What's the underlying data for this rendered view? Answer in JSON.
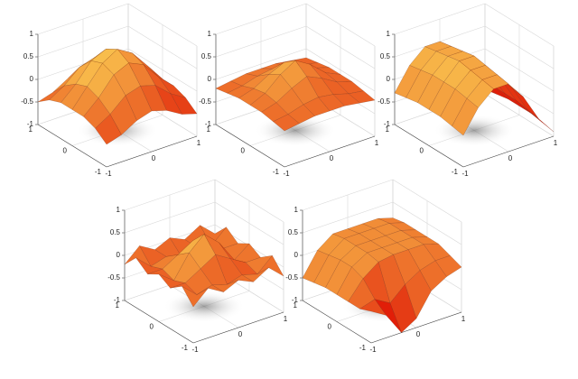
{
  "chart_data": [
    {
      "type": "surface",
      "xlim": [
        -1,
        1
      ],
      "ylim": [
        -1,
        1
      ],
      "zlim": [
        -1,
        1
      ],
      "xticks": [
        -1,
        0,
        1
      ],
      "yticks": [
        -1,
        0,
        1
      ],
      "zticks": [
        -1,
        -0.5,
        0,
        0.5,
        1
      ],
      "x": [
        -1,
        -0.67,
        -0.33,
        0,
        0.33,
        0.67,
        1
      ],
      "y": [
        -1,
        -0.67,
        -0.33,
        0,
        0.33,
        0.67,
        1
      ],
      "z": [
        [
          -0.5,
          -0.4,
          -0.2,
          -0.1,
          -0.2,
          -0.4,
          -0.5
        ],
        [
          -0.3,
          -0.1,
          0.2,
          0.3,
          0.2,
          -0.1,
          -0.3
        ],
        [
          -0.2,
          0.1,
          0.5,
          0.65,
          0.5,
          0.1,
          -0.2
        ],
        [
          -0.2,
          0.2,
          0.6,
          0.8,
          0.6,
          0.2,
          -0.2
        ],
        [
          -0.2,
          0.1,
          0.5,
          0.65,
          0.5,
          0.1,
          -0.2
        ],
        [
          -0.3,
          -0.1,
          0.2,
          0.3,
          0.2,
          -0.1,
          -0.3
        ],
        [
          -0.5,
          -0.4,
          -0.2,
          -0.1,
          -0.2,
          -0.4,
          -0.5
        ]
      ]
    },
    {
      "type": "surface",
      "xlim": [
        -1,
        1
      ],
      "ylim": [
        -1,
        1
      ],
      "zlim": [
        -1,
        1
      ],
      "xticks": [
        -1,
        0,
        1
      ],
      "yticks": [
        -1,
        0,
        1
      ],
      "zticks": [
        -1,
        -0.5,
        0,
        0.5,
        1
      ],
      "x": [
        -1,
        -0.67,
        -0.33,
        0,
        0.33,
        0.67,
        1
      ],
      "y": [
        -1,
        -0.67,
        -0.33,
        0,
        0.33,
        0.67,
        1
      ],
      "z": [
        [
          -0.2,
          -0.15,
          -0.1,
          -0.1,
          -0.1,
          -0.15,
          -0.2
        ],
        [
          -0.15,
          -0.1,
          0,
          0.05,
          0,
          -0.1,
          -0.15
        ],
        [
          -0.1,
          0,
          0.2,
          0.35,
          0.2,
          0,
          -0.1
        ],
        [
          -0.1,
          0.05,
          0.35,
          0.55,
          0.35,
          0.05,
          -0.1
        ],
        [
          -0.1,
          0,
          0.2,
          0.35,
          0.2,
          0,
          -0.1
        ],
        [
          -0.15,
          -0.1,
          0,
          0.05,
          0,
          -0.1,
          -0.15
        ],
        [
          -0.2,
          -0.15,
          -0.1,
          -0.1,
          -0.1,
          -0.15,
          -0.2
        ]
      ]
    },
    {
      "type": "surface",
      "xlim": [
        -1,
        1
      ],
      "ylim": [
        -1,
        1
      ],
      "zlim": [
        -1,
        1
      ],
      "xticks": [
        -1,
        0,
        1
      ],
      "yticks": [
        -1,
        0,
        1
      ],
      "zticks": [
        -1,
        -0.5,
        0,
        0.5,
        1
      ],
      "x": [
        -1,
        -0.67,
        -0.33,
        0,
        0.33,
        0.67,
        1
      ],
      "y": [
        -1,
        -0.67,
        -0.33,
        0,
        0.33,
        0.67,
        1
      ],
      "z": [
        [
          -0.3,
          0.2,
          0.5,
          0.5,
          0.1,
          -0.5,
          -0.9
        ],
        [
          -0.25,
          0.25,
          0.55,
          0.55,
          0.15,
          -0.45,
          -0.85
        ],
        [
          -0.2,
          0.3,
          0.6,
          0.6,
          0.2,
          -0.4,
          -0.8
        ],
        [
          -0.2,
          0.3,
          0.65,
          0.65,
          0.2,
          -0.4,
          -0.8
        ],
        [
          -0.2,
          0.3,
          0.6,
          0.6,
          0.2,
          -0.4,
          -0.8
        ],
        [
          -0.25,
          0.25,
          0.55,
          0.55,
          0.15,
          -0.45,
          -0.85
        ],
        [
          -0.3,
          0.2,
          0.5,
          0.5,
          0.1,
          -0.5,
          -0.9
        ]
      ]
    },
    {
      "type": "surface",
      "xlim": [
        -1,
        1
      ],
      "ylim": [
        -1,
        1
      ],
      "zlim": [
        -1,
        1
      ],
      "xticks": [
        -1,
        0,
        1
      ],
      "yticks": [
        -1,
        0,
        1
      ],
      "zticks": [
        -1,
        -0.5,
        0,
        0.5,
        1
      ],
      "x": [
        -1,
        -0.67,
        -0.33,
        0,
        0.33,
        0.67,
        1
      ],
      "y": [
        -1,
        -0.67,
        -0.33,
        0,
        0.33,
        0.67,
        1
      ],
      "z": [
        [
          -0.2,
          0.1,
          -0.1,
          0.05,
          -0.1,
          0.1,
          -0.2
        ],
        [
          0.1,
          -0.2,
          -0.1,
          -0.2,
          -0.1,
          -0.2,
          0.1
        ],
        [
          -0.1,
          -0.1,
          0.1,
          0.3,
          0.1,
          -0.1,
          -0.1
        ],
        [
          0.05,
          -0.2,
          0.3,
          0.6,
          0.3,
          -0.2,
          0.05
        ],
        [
          -0.1,
          -0.1,
          0.1,
          0.3,
          0.1,
          -0.1,
          -0.1
        ],
        [
          0.1,
          -0.2,
          -0.1,
          -0.2,
          -0.1,
          -0.2,
          0.1
        ],
        [
          -0.2,
          0.1,
          -0.1,
          0.05,
          -0.1,
          0.1,
          -0.2
        ]
      ]
    },
    {
      "type": "surface",
      "xlim": [
        -1,
        1
      ],
      "ylim": [
        -1,
        1
      ],
      "zlim": [
        -1,
        1
      ],
      "xticks": [
        -1,
        0,
        1
      ],
      "yticks": [
        -1,
        0,
        1
      ],
      "zticks": [
        -1,
        -0.5,
        0,
        0.5,
        1
      ],
      "x": [
        -1,
        -0.67,
        -0.33,
        0,
        0.33,
        0.67,
        1
      ],
      "y": [
        -1,
        -0.67,
        -0.33,
        0,
        0.33,
        0.67,
        1
      ],
      "z": [
        [
          -0.3,
          -0.5,
          -1,
          -0.8,
          -0.3,
          -0.1,
          0
        ],
        [
          -0.4,
          -0.3,
          -0.5,
          -0.2,
          0,
          0.1,
          0.1
        ],
        [
          -0.4,
          0,
          0.25,
          0.3,
          0.3,
          0.3,
          0.2
        ],
        [
          -0.4,
          0.1,
          0.3,
          0.3,
          0.3,
          0.3,
          0.2
        ],
        [
          -0.4,
          0.1,
          0.3,
          0.3,
          0.3,
          0.3,
          0.2
        ],
        [
          -0.45,
          0.05,
          0.3,
          0.3,
          0.3,
          0.3,
          0.2
        ],
        [
          -0.5,
          0,
          0.25,
          0.25,
          0.25,
          0.25,
          0.15
        ]
      ]
    }
  ]
}
